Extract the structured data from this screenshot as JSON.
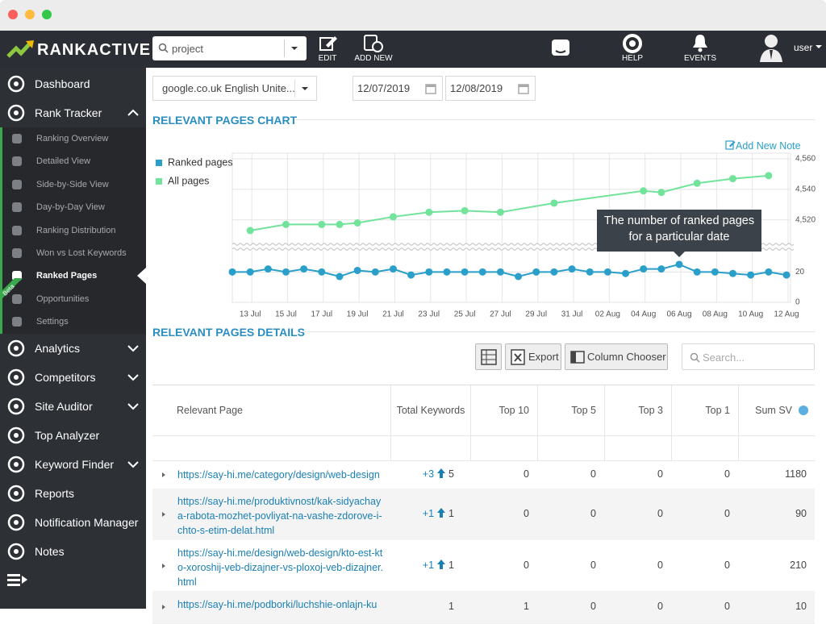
{
  "top_bar": {
    "logo": "RANKACTIVE",
    "search": "project",
    "edit": "EDIT",
    "add_new": "ADD NEW",
    "help": "HELP",
    "events": "EVENTS",
    "user": "user"
  },
  "sidebar": {
    "items": [
      {
        "label": "Dashboard"
      },
      {
        "label": "Rank Tracker",
        "state": "expanded",
        "children": [
          {
            "label": "Ranking Overview"
          },
          {
            "label": "Detailed View"
          },
          {
            "label": "Side-by-Side View"
          },
          {
            "label": "Day-by-Day View"
          },
          {
            "label": "Ranking Distribution"
          },
          {
            "label": "Won vs Lost Keywords"
          },
          {
            "label": "Ranked Pages",
            "active": true
          },
          {
            "label": "Opportunities",
            "badge": "Beta"
          },
          {
            "label": "Settings"
          }
        ]
      },
      {
        "label": "Analytics",
        "state": "collapsed"
      },
      {
        "label": "Competitors",
        "state": "collapsed"
      },
      {
        "label": "Site Auditor",
        "state": "collapsed"
      },
      {
        "label": "Top Analyzer"
      },
      {
        "label": "Keyword Finder",
        "state": "collapsed"
      },
      {
        "label": "Reports"
      },
      {
        "label": "Notification Manager"
      },
      {
        "label": "Notes"
      }
    ]
  },
  "filters": {
    "engine": "google.co.uk English Unite...",
    "date_from": "12/07/2019",
    "date_to": "12/08/2019"
  },
  "chart_section": {
    "title": "RELEVANT PAGES CHART",
    "add_note": "Add New Note"
  },
  "chart_data": {
    "type": "line",
    "categories": [
      null,
      "13 Jul",
      null,
      "15 Jul",
      null,
      "17 Jul",
      null,
      "19 Jul",
      null,
      "21 Jul",
      null,
      "23 Jul",
      null,
      "25 Jul",
      null,
      "27 Jul",
      null,
      "29 Jul",
      null,
      "31 Jul",
      null,
      "02 Aug",
      null,
      "04 Aug",
      null,
      "06 Aug",
      null,
      "08 Aug",
      null,
      "10 Aug",
      null,
      "12 Aug"
    ],
    "series": [
      {
        "name": "Ranked pages",
        "color": "#2a9fc9",
        "y_segment": 1,
        "values": [
          20,
          20,
          22,
          20,
          22,
          20,
          17,
          21,
          20,
          22,
          18,
          20,
          20,
          20,
          20,
          20,
          17,
          20,
          20,
          22,
          20,
          20,
          19,
          22,
          22,
          25,
          20,
          20,
          19,
          18,
          20,
          18
        ]
      },
      {
        "name": "All pages",
        "color": "#72e39b",
        "y_segment": 0,
        "connect_gaps": true,
        "values": [
          null,
          4513,
          null,
          4517,
          null,
          4517,
          4517,
          4518,
          null,
          4522,
          null,
          4525,
          null,
          4526,
          null,
          4525,
          null,
          null,
          4531,
          null,
          null,
          null,
          null,
          4539,
          4538,
          null,
          4544,
          null,
          4547,
          null,
          4549,
          null
        ]
      }
    ],
    "y_segments": [
      {
        "ylim": [
          4504,
          4560
        ],
        "yticks": [
          {
            "value": 4560,
            "label": "4,560"
          },
          {
            "value": 4540,
            "label": "4,540"
          },
          {
            "value": 4520,
            "label": "4,520"
          }
        ]
      },
      {
        "ylim": [
          0,
          34
        ],
        "yticks": [
          20,
          0
        ]
      }
    ],
    "axis_break": true,
    "grid": true,
    "legend": "top-left",
    "annotation": {
      "text": "The number of ranked pages for a particular date",
      "category_index": 25,
      "series_index": 0
    }
  },
  "details": {
    "title": "RELEVANT PAGES DETAILS",
    "export": "Export",
    "column_chooser": "Column Chooser",
    "search_placeholder": "Search...",
    "table": {
      "columns": [
        "Relevant Page",
        "Total Keywords",
        "Top 10",
        "Top 5",
        "Top 3",
        "Top 1",
        "Sum SV"
      ],
      "rows": [
        {
          "page": "https://say-hi.me/category/design/web-design",
          "total_keywords": {
            "change": "+3",
            "total": 5
          },
          "top10": 0,
          "top5": 0,
          "top3": 0,
          "top1": 0,
          "sum_sv": 1180
        },
        {
          "page": "https://say-hi.me/produktivnost/kak-sidyachaya-rabota-mozhet-povliyat-na-vashe-zdorove-i-chto-s-etim-delat.html",
          "total_keywords": {
            "change": "+1",
            "total": 1
          },
          "top10": 0,
          "top5": 0,
          "top3": 0,
          "top1": 0,
          "sum_sv": 90
        },
        {
          "page": "https://say-hi.me/design/web-design/kto-est-kto-xoroshij-veb-dizajner-vs-ploxoj-veb-dizajner.html",
          "total_keywords": {
            "change": "+1",
            "total": 1
          },
          "top10": 0,
          "top5": 0,
          "top3": 0,
          "top1": 0,
          "sum_sv": 210
        },
        {
          "page": "https://say-hi.me/podborki/luchshie-onlajn-ku",
          "total_keywords": {
            "total": 1
          },
          "top10": 1,
          "top5": 0,
          "top3": 0,
          "top1": 0,
          "sum_sv": 10
        }
      ]
    }
  }
}
